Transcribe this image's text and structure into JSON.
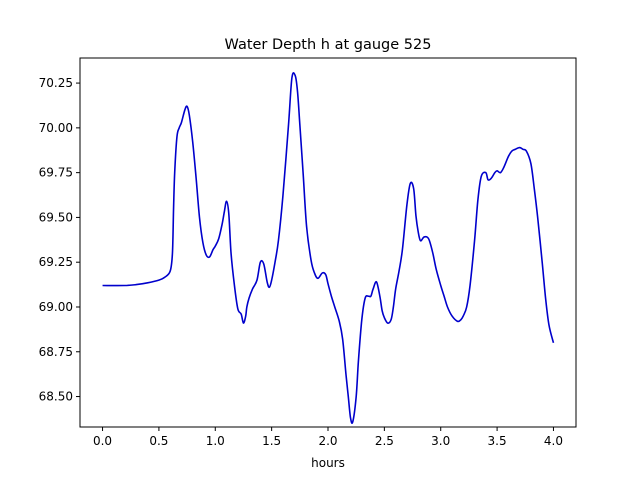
{
  "chart_data": {
    "type": "line",
    "title": "Water Depth h at gauge 525",
    "xlabel": "hours",
    "ylabel": "",
    "xlim": [
      -0.2,
      4.2
    ],
    "ylim": [
      68.33,
      70.39
    ],
    "xticks": [
      0.0,
      0.5,
      1.0,
      1.5,
      2.0,
      2.5,
      3.0,
      3.5,
      4.0
    ],
    "xtick_labels": [
      "0.0",
      "0.5",
      "1.0",
      "1.5",
      "2.0",
      "2.5",
      "3.0",
      "3.5",
      "4.0"
    ],
    "yticks": [
      68.5,
      68.75,
      69.0,
      69.25,
      69.5,
      69.75,
      70.0,
      70.25
    ],
    "ytick_labels": [
      "68.50",
      "68.75",
      "69.00",
      "69.25",
      "69.50",
      "69.75",
      "70.00",
      "70.25"
    ],
    "grid": false,
    "line_color": "#0000cc",
    "series": [
      {
        "name": "",
        "x": [
          0.0,
          0.2,
          0.3,
          0.4,
          0.5,
          0.55,
          0.6,
          0.62,
          0.63,
          0.64,
          0.66,
          0.68,
          0.7,
          0.73,
          0.75,
          0.77,
          0.8,
          0.83,
          0.86,
          0.89,
          0.92,
          0.95,
          0.98,
          1.0,
          1.03,
          1.06,
          1.08,
          1.1,
          1.12,
          1.14,
          1.17,
          1.2,
          1.23,
          1.25,
          1.27,
          1.28,
          1.3,
          1.33,
          1.37,
          1.4,
          1.43,
          1.46,
          1.48,
          1.5,
          1.53,
          1.56,
          1.6,
          1.65,
          1.68,
          1.71,
          1.73,
          1.75,
          1.78,
          1.81,
          1.85,
          1.88,
          1.91,
          1.95,
          1.98,
          2.0,
          2.03,
          2.06,
          2.1,
          2.13,
          2.16,
          2.18,
          2.2,
          2.22,
          2.25,
          2.27,
          2.3,
          2.33,
          2.36,
          2.38,
          2.4,
          2.43,
          2.46,
          2.48,
          2.5,
          2.53,
          2.56,
          2.58,
          2.6,
          2.63,
          2.66,
          2.7,
          2.73,
          2.76,
          2.78,
          2.8,
          2.82,
          2.85,
          2.88,
          2.9,
          2.93,
          2.96,
          3.0,
          3.03,
          3.06,
          3.1,
          3.15,
          3.18,
          3.2,
          3.23,
          3.26,
          3.3,
          3.33,
          3.36,
          3.4,
          3.42,
          3.45,
          3.48,
          3.5,
          3.53,
          3.56,
          3.6,
          3.63,
          3.66,
          3.7,
          3.73,
          3.76,
          3.8,
          3.83,
          3.86,
          3.9,
          3.93,
          3.96,
          4.0
        ],
        "y": [
          69.12,
          69.12,
          69.125,
          69.135,
          69.15,
          69.165,
          69.2,
          69.3,
          69.55,
          69.75,
          69.95,
          70.0,
          70.03,
          70.1,
          70.12,
          70.07,
          69.92,
          69.72,
          69.5,
          69.36,
          69.29,
          69.28,
          69.32,
          69.34,
          69.38,
          69.46,
          69.53,
          69.59,
          69.52,
          69.3,
          69.12,
          68.99,
          68.96,
          68.91,
          68.95,
          69.0,
          69.05,
          69.1,
          69.15,
          69.25,
          69.24,
          69.14,
          69.11,
          69.15,
          69.25,
          69.37,
          69.62,
          70.02,
          70.28,
          70.29,
          70.2,
          70.02,
          69.74,
          69.45,
          69.26,
          69.19,
          69.16,
          69.19,
          69.18,
          69.13,
          69.06,
          69.0,
          68.92,
          68.82,
          68.62,
          68.5,
          68.38,
          68.36,
          68.5,
          68.7,
          68.93,
          69.05,
          69.06,
          69.06,
          69.1,
          69.14,
          69.06,
          68.98,
          68.94,
          68.91,
          68.93,
          69.0,
          69.1,
          69.2,
          69.32,
          69.57,
          69.69,
          69.66,
          69.51,
          69.42,
          69.37,
          69.39,
          69.39,
          69.37,
          69.3,
          69.21,
          69.12,
          69.06,
          69.0,
          68.95,
          68.92,
          68.93,
          68.95,
          69.0,
          69.12,
          69.37,
          69.6,
          69.73,
          69.75,
          69.71,
          69.72,
          69.75,
          69.76,
          69.75,
          69.78,
          69.84,
          69.87,
          69.88,
          69.89,
          69.88,
          69.87,
          69.8,
          69.66,
          69.5,
          69.25,
          69.05,
          68.9,
          68.8
        ]
      }
    ]
  }
}
